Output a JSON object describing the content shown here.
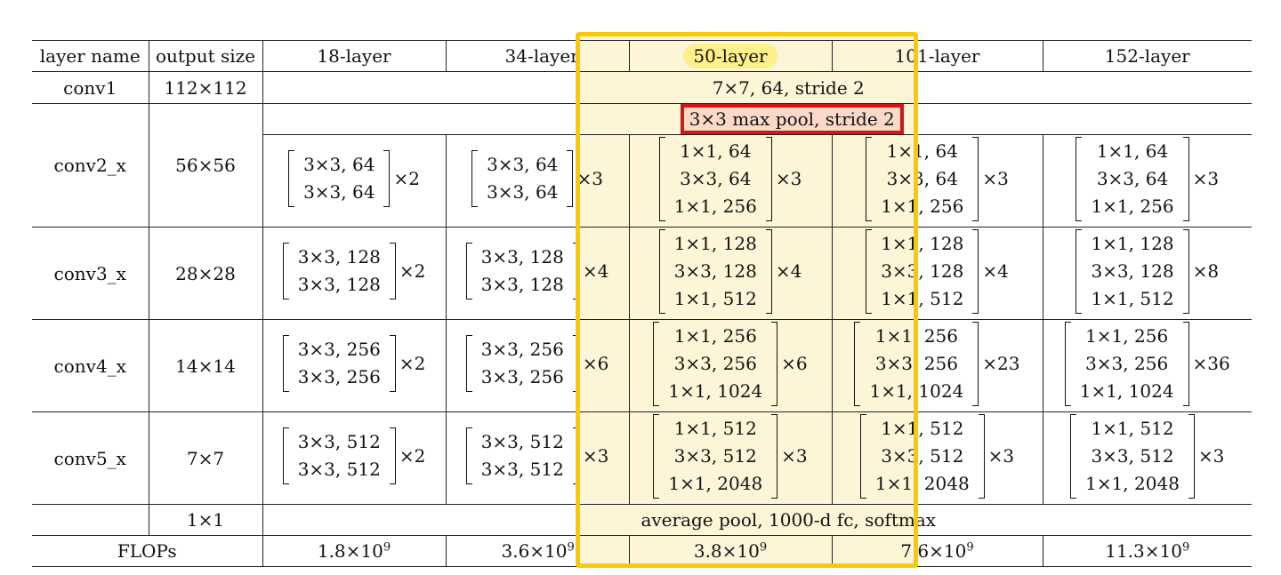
{
  "header": {
    "layer_name": "layer name",
    "output_size": "output size",
    "l18": "18-layer",
    "l34": "34-layer",
    "l50": "50-layer",
    "l101": "101-layer",
    "l152": "152-layer"
  },
  "rows": {
    "conv1": {
      "name": "conv1",
      "size": "112×112",
      "config": "7×7, 64, stride 2"
    },
    "maxpool": {
      "config": "3×3 max pool, stride 2"
    },
    "conv2": {
      "name": "conv2_x",
      "size": "56×56",
      "l18": [
        "3×3, 64",
        "3×3, 64"
      ],
      "l18_x": "×2",
      "l34": [
        "3×3, 64",
        "3×3, 64"
      ],
      "l34_x": "×3",
      "l50": [
        "1×1, 64",
        "3×3, 64",
        "1×1, 256"
      ],
      "l50_x": "×3",
      "l101": [
        "1×1, 64",
        "3×3, 64",
        "1×1, 256"
      ],
      "l101_x": "×3",
      "l152": [
        "1×1, 64",
        "3×3, 64",
        "1×1, 256"
      ],
      "l152_x": "×3"
    },
    "conv3": {
      "name": "conv3_x",
      "size": "28×28",
      "l18": [
        "3×3, 128",
        "3×3, 128"
      ],
      "l18_x": "×2",
      "l34": [
        "3×3, 128",
        "3×3, 128"
      ],
      "l34_x": "×4",
      "l50": [
        "1×1, 128",
        "3×3, 128",
        "1×1, 512"
      ],
      "l50_x": "×4",
      "l101": [
        "1×1, 128",
        "3×3, 128",
        "1×1, 512"
      ],
      "l101_x": "×4",
      "l152": [
        "1×1, 128",
        "3×3, 128",
        "1×1, 512"
      ],
      "l152_x": "×8"
    },
    "conv4": {
      "name": "conv4_x",
      "size": "14×14",
      "l18": [
        "3×3, 256",
        "3×3, 256"
      ],
      "l18_x": "×2",
      "l34": [
        "3×3, 256",
        "3×3, 256"
      ],
      "l34_x": "×6",
      "l50": [
        "1×1, 256",
        "3×3, 256",
        "1×1, 1024"
      ],
      "l50_x": "×6",
      "l101": [
        "1×1, 256",
        "3×3, 256",
        "1×1, 1024"
      ],
      "l101_x": "×23",
      "l152": [
        "1×1, 256",
        "3×3, 256",
        "1×1, 1024"
      ],
      "l152_x": "×36"
    },
    "conv5": {
      "name": "conv5_x",
      "size": "7×7",
      "l18": [
        "3×3, 512",
        "3×3, 512"
      ],
      "l18_x": "×2",
      "l34": [
        "3×3, 512",
        "3×3, 512"
      ],
      "l34_x": "×3",
      "l50": [
        "1×1, 512",
        "3×3, 512",
        "1×1, 2048"
      ],
      "l50_x": "×3",
      "l101": [
        "1×1, 512",
        "3×3, 512",
        "1×1, 2048"
      ],
      "l101_x": "×3",
      "l152": [
        "1×1, 512",
        "3×3, 512",
        "1×1, 2048"
      ],
      "l152_x": "×3"
    },
    "fc": {
      "size": "1×1",
      "config": "average pool, 1000-d fc, softmax"
    },
    "flops": {
      "label": "FLOPs",
      "l18": "1.8×10",
      "l18_exp": "9",
      "l34": "3.6×10",
      "l34_exp": "9",
      "l50": "3.8×10",
      "l50_exp": "9",
      "l101": "7.6×10",
      "l101_exp": "9",
      "l152": "11.3×10",
      "l152_exp": "9"
    }
  },
  "colors": {
    "highlight_border": "#f7c90b",
    "highlight_fill": "#fcf5d8",
    "red_box": "#d01616",
    "pill": "#fdf08a"
  }
}
